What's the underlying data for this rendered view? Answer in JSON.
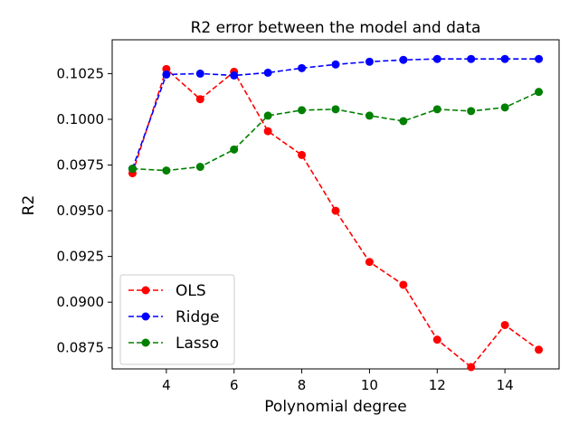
{
  "chart_data": {
    "type": "line",
    "title": "R2 error between the model and data",
    "xlabel": "Polynomial degree",
    "ylabel": "R2",
    "x": [
      3,
      4,
      5,
      6,
      7,
      8,
      9,
      10,
      11,
      12,
      13,
      14,
      15
    ],
    "xlim": [
      2.4,
      15.6
    ],
    "ylim": [
      0.08635,
      0.10435
    ],
    "xticks": [
      4,
      6,
      8,
      10,
      12,
      14
    ],
    "xtick_labels": [
      "4",
      "6",
      "8",
      "10",
      "12",
      "14"
    ],
    "yticks": [
      0.0875,
      0.09,
      0.0925,
      0.095,
      0.0975,
      0.1,
      0.1025
    ],
    "ytick_labels": [
      "0.0875",
      "0.0900",
      "0.0925",
      "0.0950",
      "0.0975",
      "0.1000",
      "0.1025"
    ],
    "grid": false,
    "legend_position": "lower-left",
    "series": [
      {
        "name": "OLS",
        "color": "#ff0000",
        "linestyle": "dashed",
        "marker": "circle",
        "values": [
          0.09705,
          0.10275,
          0.1011,
          0.1026,
          0.09935,
          0.09805,
          0.095,
          0.0922,
          0.09095,
          0.08795,
          0.08645,
          0.08875,
          0.0874
        ]
      },
      {
        "name": "Ridge",
        "color": "#0000ff",
        "linestyle": "dashed",
        "marker": "circle",
        "values": [
          0.0973,
          0.10245,
          0.1025,
          0.1024,
          0.10255,
          0.1028,
          0.103,
          0.10315,
          0.10325,
          0.1033,
          0.1033,
          0.1033,
          0.1033
        ]
      },
      {
        "name": "Lasso",
        "color": "#008000",
        "linestyle": "dashed",
        "marker": "circle",
        "values": [
          0.0973,
          0.0972,
          0.0974,
          0.09835,
          0.1002,
          0.1005,
          0.10055,
          0.1002,
          0.0999,
          0.10055,
          0.10045,
          0.10065,
          0.1015
        ]
      }
    ]
  }
}
